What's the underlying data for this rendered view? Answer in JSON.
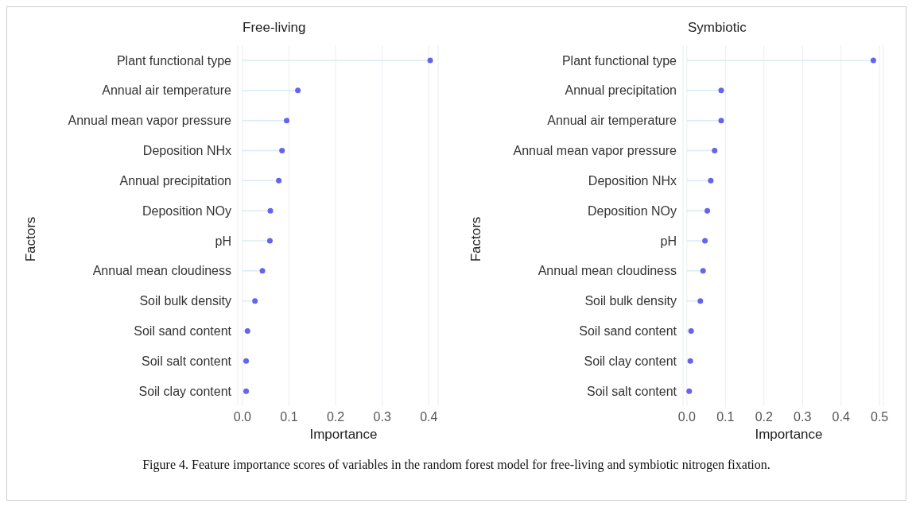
{
  "chart_data": [
    {
      "type": "lollipop",
      "orientation": "horizontal",
      "title": "Free-living",
      "xlabel": "Importance",
      "ylabel": "Factors",
      "categories": [
        "Plant functional type",
        "Annual air temperature",
        "Annual mean vapor pressure",
        "Deposition NHx",
        "Annual precipitation",
        "Deposition NOy",
        "pH",
        "Annual mean cloudiness",
        "Soil bulk density",
        "Soil sand content",
        "Soil salt content",
        "Soil clay content"
      ],
      "series": [
        {
          "color": "#6464ee",
          "values": [
            0.403,
            0.119,
            0.095,
            0.085,
            0.078,
            0.06,
            0.059,
            0.043,
            0.027,
            0.011,
            0.008,
            0.008
          ]
        }
      ],
      "xlim": [
        -0.01,
        0.42
      ],
      "xticks": [
        {
          "value": 0,
          "label": "0.0"
        },
        0.1,
        0.2,
        0.3,
        0.4
      ],
      "grid": "x",
      "annotations": [
        "Figure 4. Feature importance scores of variables in the random forest model for free-living and symbiotic nitrogen fixation."
      ]
    },
    {
      "type": "lollipop",
      "orientation": "horizontal",
      "title": "Symbiotic",
      "xlabel": "Importance",
      "ylabel": "Factors",
      "categories": [
        "Plant functional type",
        "Annual precipitation",
        "Annual air temperature",
        "Annual mean vapor pressure",
        "Deposition NHx",
        "Deposition NOy",
        "pH",
        "Annual mean cloudiness",
        "Soil bulk density",
        "Soil sand content",
        "Soil clay content",
        "Soil salt content"
      ],
      "series": [
        {
          "color": "#6464ee",
          "values": [
            0.484,
            0.089,
            0.089,
            0.072,
            0.062,
            0.053,
            0.047,
            0.042,
            0.035,
            0.011,
            0.009,
            0.006
          ]
        }
      ],
      "xlim": [
        -0.01,
        0.51
      ],
      "xticks": [
        {
          "value": 0,
          "label": "0.0"
        },
        0.1,
        0.2,
        0.3,
        0.4,
        0.5
      ],
      "grid": "x"
    }
  ]
}
